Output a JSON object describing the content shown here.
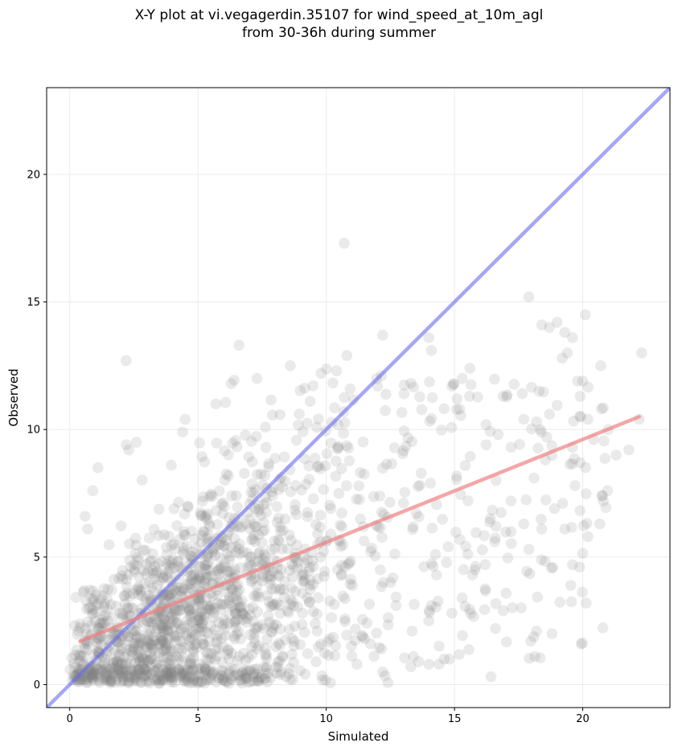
{
  "chart_data": {
    "type": "scatter",
    "title_line1": "X-Y plot at vi.vegagerdin.35107 for wind_speed_at_10m_agl",
    "title_line2": "from 30-36h during summer",
    "xlabel": "Simulated",
    "ylabel": "Observed",
    "xlim": [
      -0.9,
      23.4
    ],
    "ylim": [
      -0.9,
      23.4
    ],
    "xticks": [
      0,
      5,
      10,
      15,
      20
    ],
    "yticks": [
      0,
      5,
      10,
      15,
      20
    ],
    "xtick_labels": [
      "0",
      "5",
      "10",
      "15",
      "20"
    ],
    "ytick_labels": [
      "0",
      "5",
      "10",
      "15",
      "20"
    ],
    "grid": true,
    "point_color": "#808080",
    "reference_line": {
      "name": "1:1",
      "color": "#6b6bf0",
      "x": [
        -0.9,
        23.4
      ],
      "y": [
        -0.9,
        23.4
      ]
    },
    "fit_line": {
      "name": "linear fit",
      "color": "#f08080",
      "x": [
        0.4,
        22.2
      ],
      "y": [
        1.7,
        10.5
      ]
    },
    "highlighted_points": [
      [
        10.7,
        17.3
      ],
      [
        2.2,
        12.7
      ],
      [
        6.6,
        13.3
      ],
      [
        17.9,
        15.2
      ],
      [
        20.1,
        14.5
      ],
      [
        18.4,
        14.1
      ],
      [
        18.7,
        14.0
      ],
      [
        19.0,
        14.2
      ],
      [
        19.3,
        13.8
      ],
      [
        19.6,
        13.6
      ],
      [
        22.3,
        13.0
      ],
      [
        12.2,
        13.7
      ],
      [
        14.0,
        13.6
      ],
      [
        14.1,
        13.1
      ],
      [
        10.8,
        12.9
      ],
      [
        20.7,
        12.5
      ],
      [
        19.4,
        13.0
      ],
      [
        19.2,
        12.8
      ],
      [
        19.8,
        11.9
      ],
      [
        20.0,
        11.9
      ],
      [
        18.3,
        11.5
      ],
      [
        19.9,
        11.3
      ],
      [
        20.2,
        10.4
      ],
      [
        22.2,
        10.4
      ],
      [
        21.8,
        9.2
      ],
      [
        21.3,
        9.0
      ],
      [
        18.7,
        10.6
      ],
      [
        18.2,
        10.3
      ],
      [
        17.7,
        10.4
      ],
      [
        16.9,
        11.3
      ],
      [
        19.6,
        9.3
      ],
      [
        18.6,
        9.7
      ],
      [
        19.9,
        8.7
      ],
      [
        19.7,
        7.8
      ],
      [
        20.2,
        5.8
      ],
      [
        19.6,
        4.7
      ],
      [
        19.3,
        6.1
      ],
      [
        18.9,
        6.9
      ],
      [
        18.4,
        6.1
      ],
      [
        18.1,
        8.1
      ],
      [
        17.9,
        5.3
      ],
      [
        18.2,
        2.1
      ],
      [
        18.8,
        2.0
      ],
      [
        16.9,
        2.9
      ],
      [
        16.6,
        2.2
      ],
      [
        16.4,
        6.5
      ],
      [
        17.2,
        7.2
      ],
      [
        17.7,
        6.3
      ],
      [
        15.8,
        4.5
      ],
      [
        15.7,
        4.3
      ],
      [
        16.2,
        4.7
      ],
      [
        15.3,
        3.4
      ],
      [
        14.4,
        0.8
      ],
      [
        14.6,
        1.0
      ],
      [
        14.8,
        1.0
      ],
      [
        14.0,
        0.8
      ],
      [
        13.4,
        1.1
      ],
      [
        13.3,
        0.7
      ],
      [
        13.6,
        0.9
      ],
      [
        12.2,
        0.5
      ],
      [
        14.9,
        2.8
      ],
      [
        14.0,
        2.5
      ],
      [
        14.3,
        4.3
      ],
      [
        14.1,
        3.1
      ],
      [
        11.2,
        0.8
      ],
      [
        11.5,
        1.8
      ],
      [
        9.6,
        0.9
      ],
      [
        8.6,
        0.2
      ],
      [
        8.7,
        0.2
      ],
      [
        15.3,
        12.0
      ],
      [
        15.6,
        12.4
      ],
      [
        14.9,
        11.7
      ],
      [
        15.1,
        11.2
      ],
      [
        15.2,
        10.8
      ],
      [
        12.0,
        11.7
      ],
      [
        9.8,
        12.2
      ],
      [
        10.4,
        12.3
      ],
      [
        7.3,
        12.0
      ],
      [
        8.6,
        12.5
      ],
      [
        6.3,
        11.8
      ],
      [
        5.7,
        11.0
      ],
      [
        2.2,
        9.4
      ],
      [
        2.6,
        9.5
      ],
      [
        2.3,
        9.2
      ],
      [
        4.5,
        10.4
      ],
      [
        4.4,
        9.9
      ],
      [
        1.1,
        8.5
      ],
      [
        0.9,
        7.6
      ],
      [
        0.7,
        6.1
      ],
      [
        0.6,
        6.6
      ]
    ]
  }
}
